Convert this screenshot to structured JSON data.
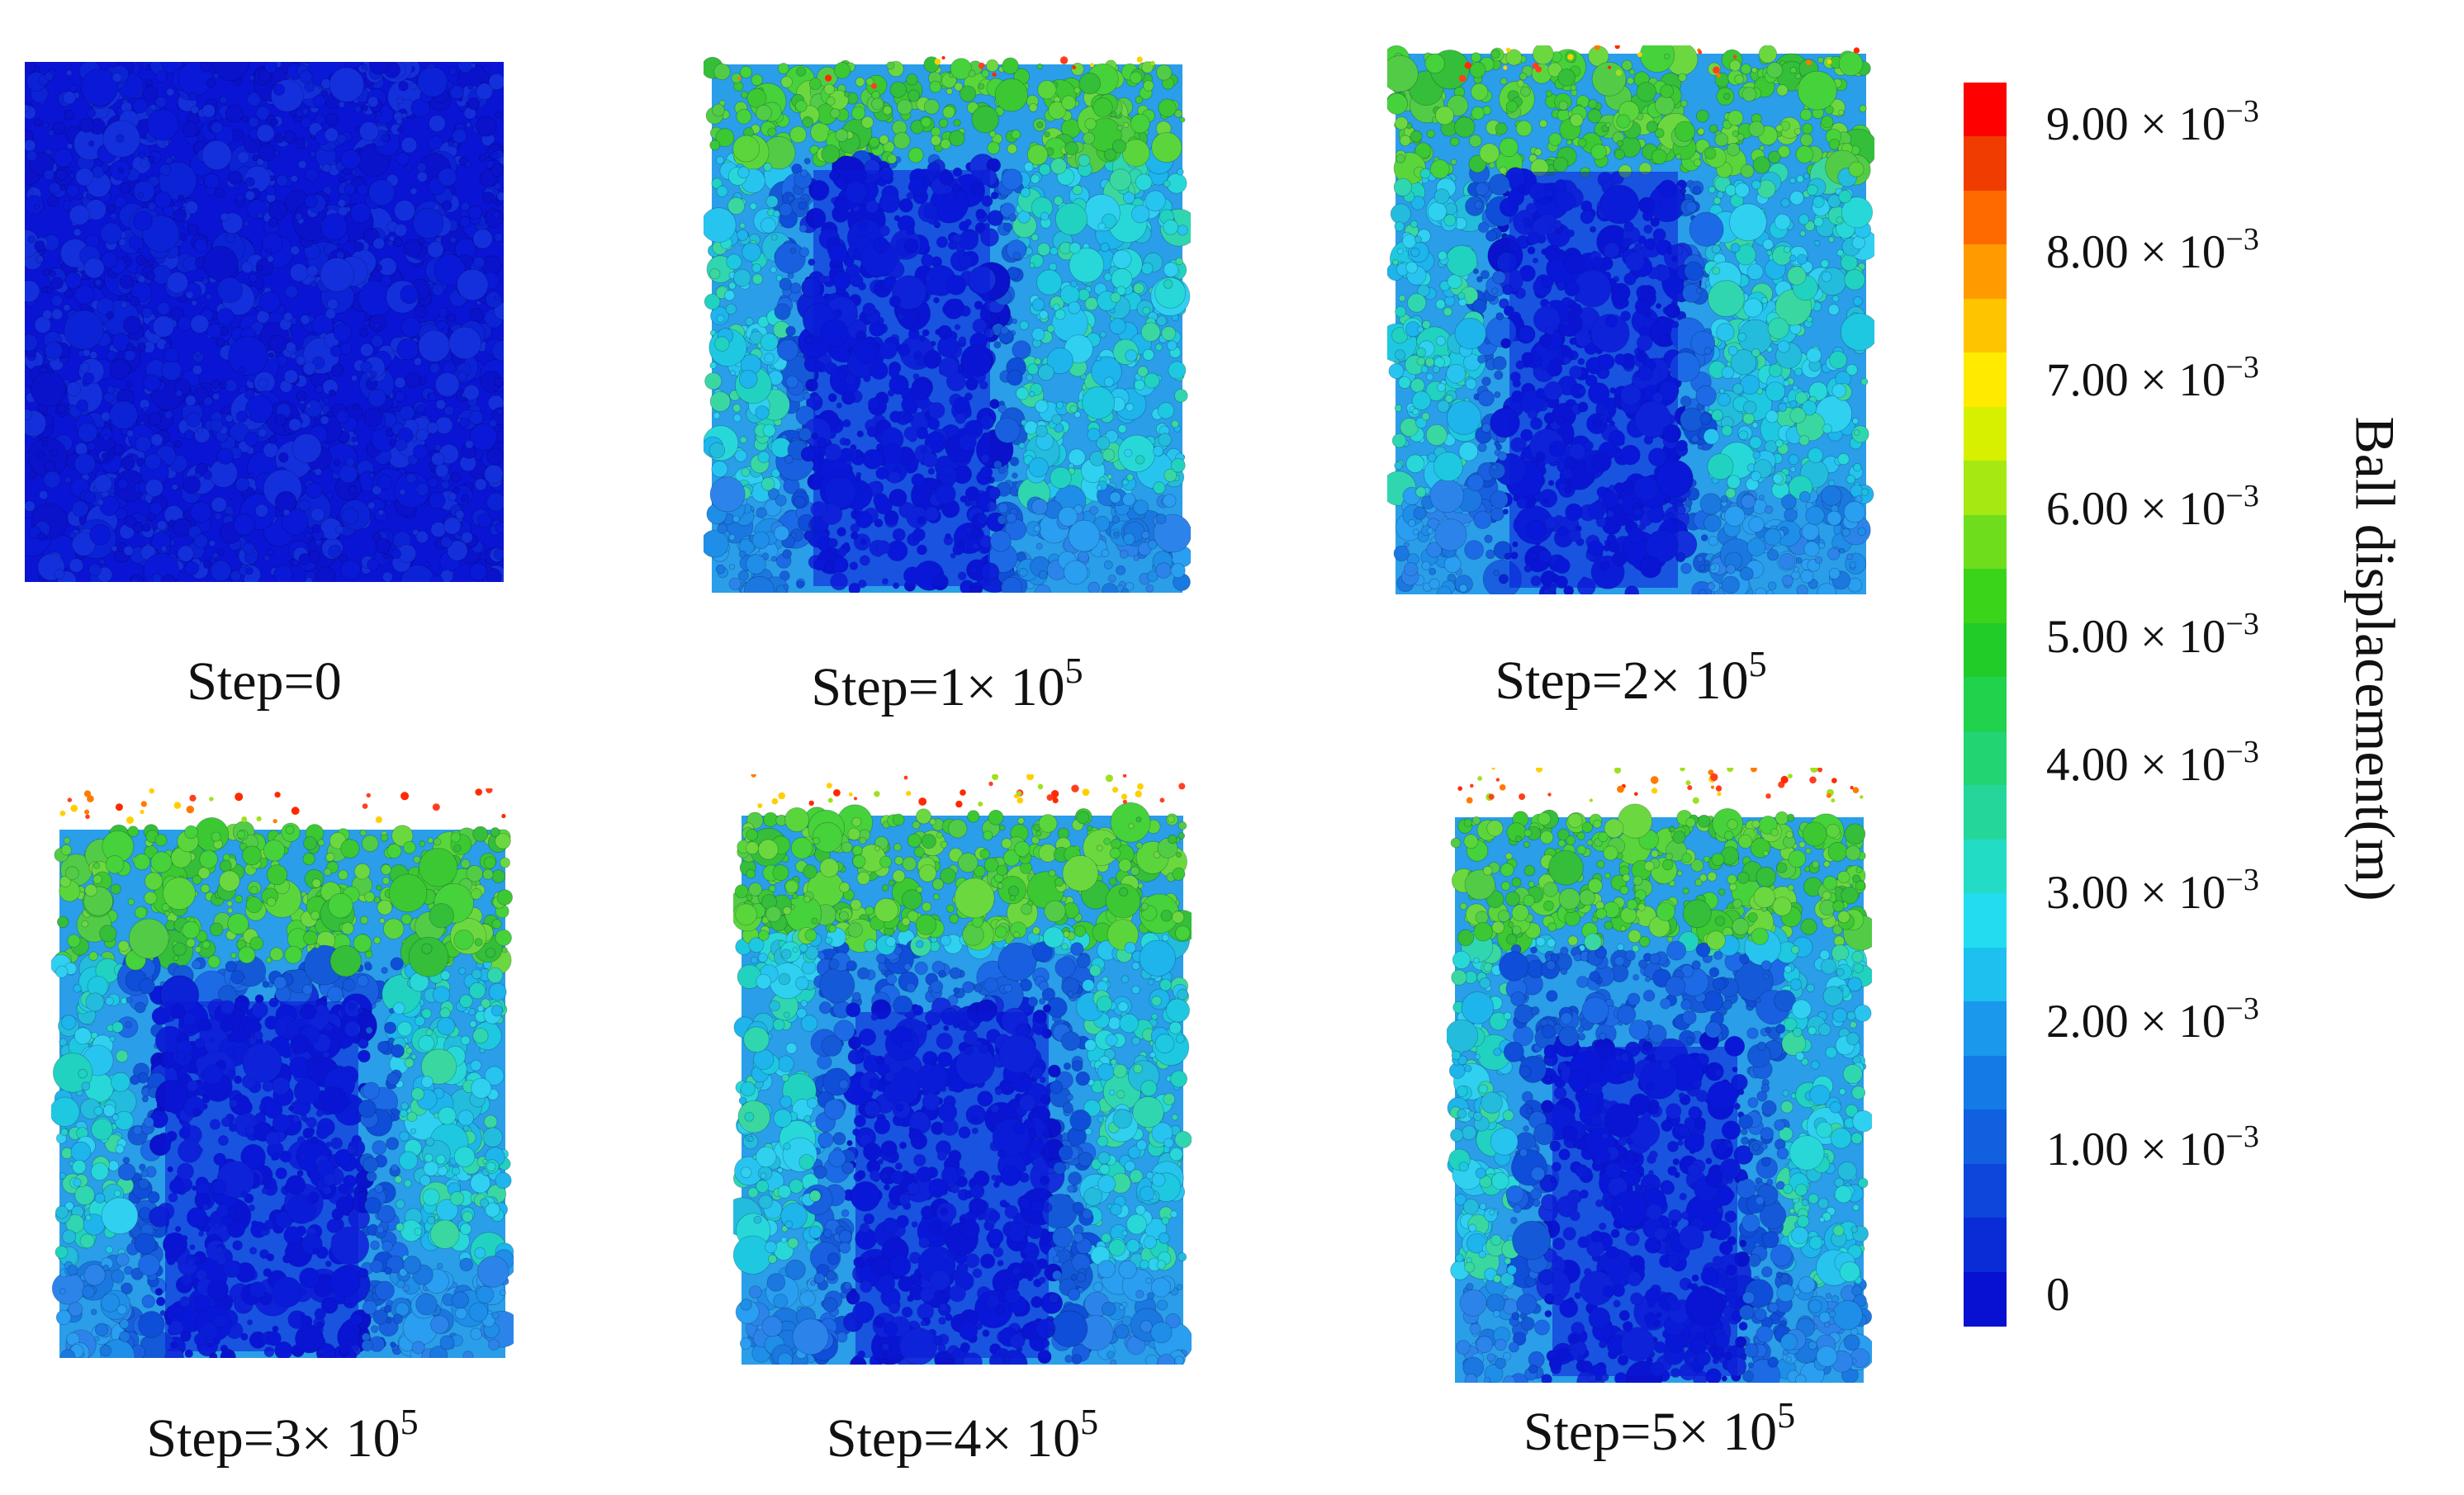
{
  "colorbar": {
    "title": "Ball displacement(m)",
    "bands": [
      "#ff0000",
      "#f03c00",
      "#ff6a00",
      "#ff9b00",
      "#ffc400",
      "#ffea00",
      "#d6f000",
      "#a6e812",
      "#6ede1c",
      "#3ad41a",
      "#22cc28",
      "#20d24c",
      "#22d472",
      "#24d69a",
      "#22dcc6",
      "#22dcf0",
      "#1ec0f0",
      "#1a98ec",
      "#147ae6",
      "#1060e0",
      "#0c46da",
      "#0a2cd6",
      "#0810d2"
    ],
    "ticks": [
      {
        "mantissa": "9.00 × 10",
        "exp": "−3"
      },
      {
        "mantissa": "8.00 × 10",
        "exp": "−3"
      },
      {
        "mantissa": "7.00 × 10",
        "exp": "−3"
      },
      {
        "mantissa": "6.00 × 10",
        "exp": "−3"
      },
      {
        "mantissa": "5.00 × 10",
        "exp": "−3"
      },
      {
        "mantissa": "4.00 × 10",
        "exp": "−3"
      },
      {
        "mantissa": "3.00 × 10",
        "exp": "−3"
      },
      {
        "mantissa": "2.00 × 10",
        "exp": "−3"
      },
      {
        "mantissa": "1.00 × 10",
        "exp": "−3"
      },
      {
        "mantissa": "0",
        "exp": ""
      }
    ]
  },
  "panels": [
    {
      "label": "Step=0",
      "exp": ""
    },
    {
      "label": "Step=1× 10",
      "exp": "5"
    },
    {
      "label": "Step=2× 10",
      "exp": "5"
    },
    {
      "label": "Step=3× 10",
      "exp": "5"
    },
    {
      "label": "Step=4× 10",
      "exp": "5"
    },
    {
      "label": "Step=5× 10",
      "exp": "5"
    }
  ]
}
